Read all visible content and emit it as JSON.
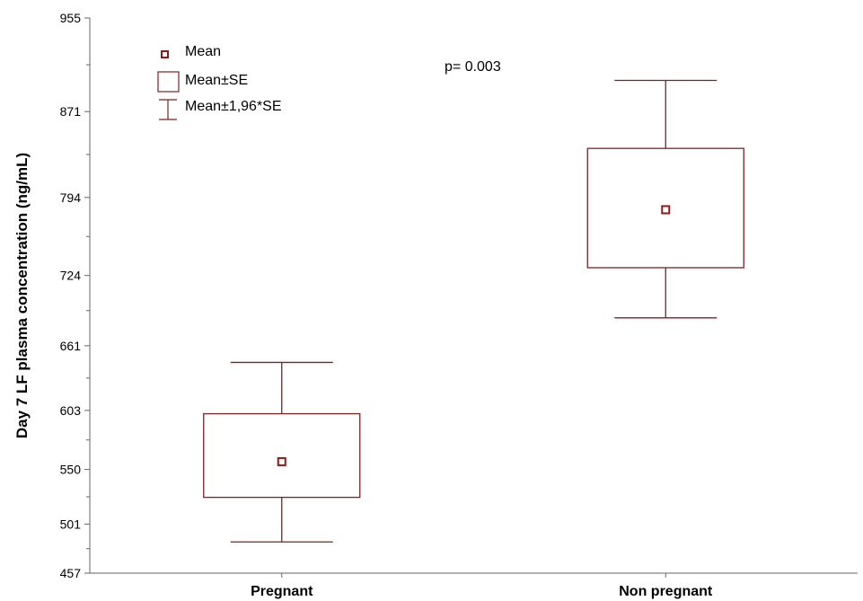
{
  "chart_data": {
    "type": "box",
    "title": "",
    "xlabel": "",
    "ylabel": "Day 7 LF plasma concentration (ng/mL)",
    "ylim": [
      457,
      955
    ],
    "yticks": [
      457,
      501,
      550,
      603,
      661,
      724,
      794,
      871,
      955
    ],
    "categories": [
      "Pregnant",
      "Non pregnant"
    ],
    "groups": [
      {
        "category": "Pregnant",
        "mean": 557,
        "se_low": 525,
        "se_high": 600,
        "ci_low": 485,
        "ci_high": 646
      },
      {
        "category": "Non pregnant",
        "mean": 783,
        "se_low": 731,
        "se_high": 838,
        "ci_low": 686,
        "ci_high": 899
      }
    ],
    "legend": {
      "position": "top-left",
      "entries": [
        "Mean",
        "Mean±SE",
        "Mean±1,96*SE"
      ]
    },
    "annotation": "p= 0.003",
    "grid": false,
    "colors": {
      "box": "#7a2323",
      "mean": "#8b1a1a",
      "axis": "#666666"
    }
  }
}
